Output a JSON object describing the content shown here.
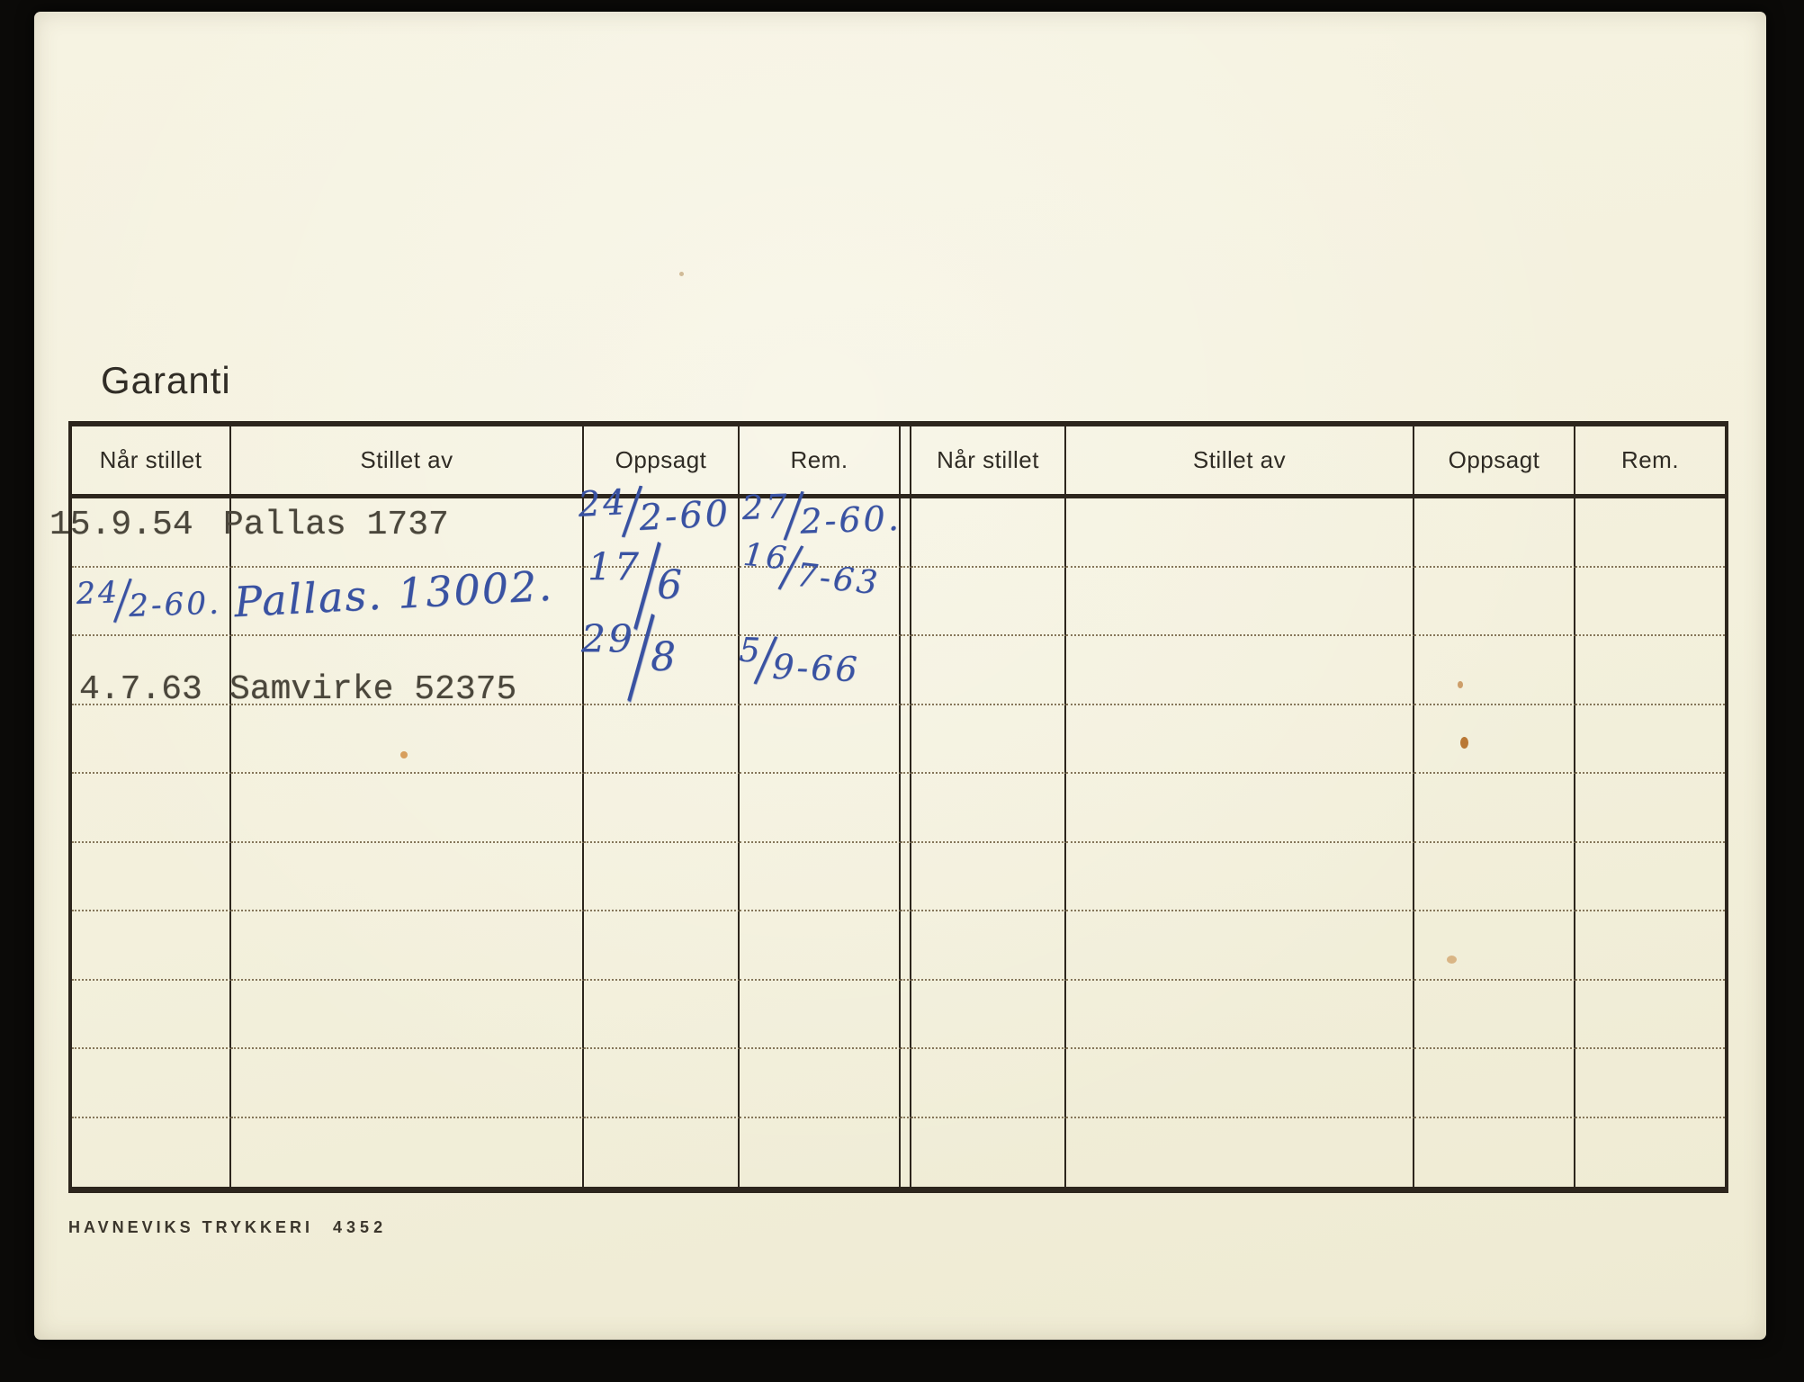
{
  "title": "Garanti",
  "table": {
    "headers": [
      "Når stillet",
      "Stillet av",
      "Oppsagt",
      "Rem."
    ]
  },
  "entries": {
    "typed": {
      "r1_date": "15.9.54",
      "r1_stillet_av": "Pallas 1737",
      "r3_date": "4.7.63",
      "r3_stillet_av": "Samvirke 52375"
    },
    "hand": {
      "r1_oppsagt": "24/2-60",
      "r1_rem": "27/2-60.",
      "r2_date": "24/2-60.",
      "r2_stillet_av": "Pallas. 13002.",
      "r2_oppsagt": "17/6",
      "r2_rem": "16/7-63",
      "r3_oppsagt": "29/8",
      "r3_rem": "5/9-66"
    }
  },
  "footer": {
    "printer": "HAVNEVIKS TRYKKERI",
    "number": "4352"
  },
  "colors": {
    "paper": "#f3f0dc",
    "background": "#0b0a08",
    "table_line": "#2d261d",
    "dotted_line": "#85765a",
    "ink_blue": "#3952a2",
    "typewriter_ink": "#4a463b"
  }
}
